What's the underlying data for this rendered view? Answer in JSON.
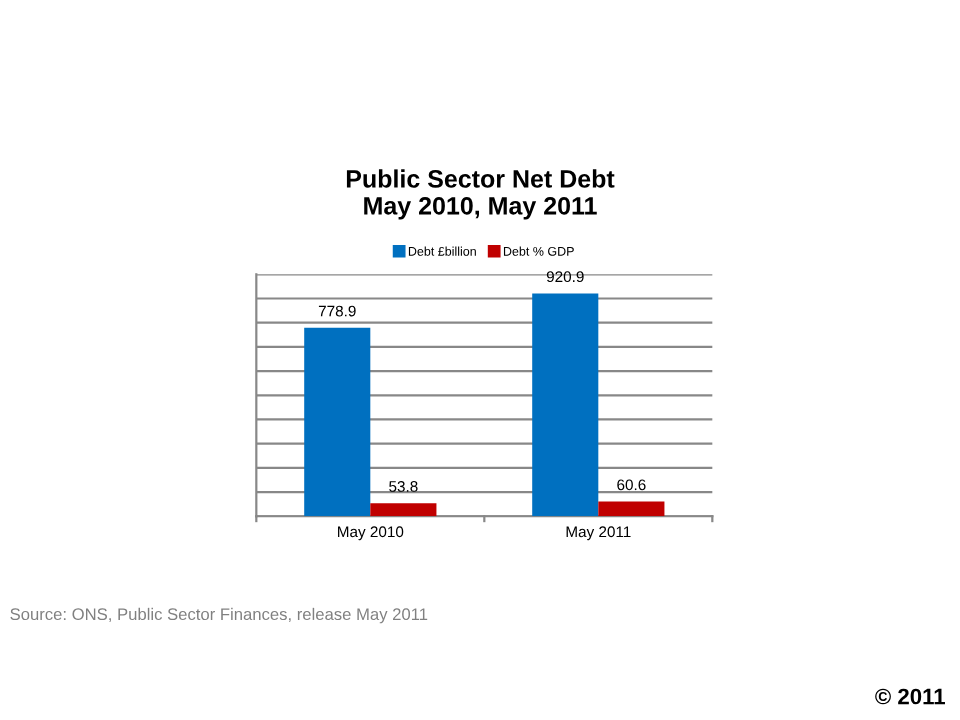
{
  "chart_data": {
    "type": "bar",
    "title": "Public Sector Net Debt\nMay 2010, May 2011",
    "categories": [
      "May 2010",
      "May 2011"
    ],
    "series": [
      {
        "name": "Debt £billion",
        "color": "#0070c0",
        "values": [
          778.9,
          920.9
        ]
      },
      {
        "name": "Debt % GDP",
        "color": "#c00000",
        "values": [
          53.8,
          60.6
        ]
      }
    ],
    "ylim": [
      0,
      1000
    ],
    "yticks": [
      {
        "value": 0,
        "label": null
      },
      {
        "value": 100,
        "label": null
      },
      {
        "value": 200,
        "label": null
      },
      {
        "value": 300,
        "label": null
      },
      {
        "value": 400,
        "label": null
      },
      {
        "value": 500,
        "label": null
      },
      {
        "value": 600,
        "label": null
      },
      {
        "value": 700,
        "label": null
      },
      {
        "value": 800,
        "label": null
      },
      {
        "value": 900,
        "label": null
      },
      {
        "value": 1000,
        "label": null
      }
    ],
    "grid": "y",
    "legend": "top",
    "data_labels": true,
    "tick_labels": "x",
    "annotations": [
      "Source: ONS, Public Sector Finances, release May 2011",
      "© 2011"
    ]
  }
}
